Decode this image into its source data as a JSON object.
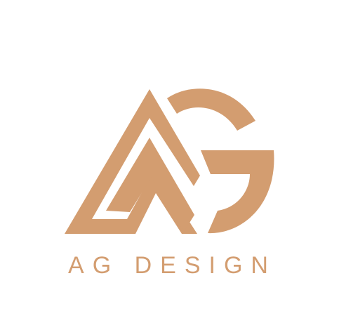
{
  "logo": {
    "icon": "ag-monogram-icon",
    "color": "#d39d70"
  },
  "brand": {
    "name": "AG DESIGN"
  }
}
